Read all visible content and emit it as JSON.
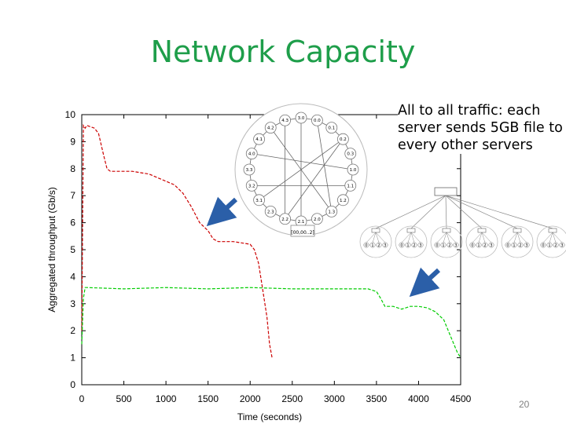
{
  "slide": {
    "title": "Network Capacity",
    "caption": "All to all traffic: each server sends 5GB file to every other servers",
    "page_number": "20"
  },
  "colors": {
    "title": "#1e9e4a",
    "series1": "#cc0000",
    "series2": "#00cc00",
    "arrow": "#2b5fa8"
  },
  "diagrams": {
    "ring": {
      "nodes": [
        "3.0",
        "0.0",
        "0.1",
        "0.2",
        "0.3",
        "1.0",
        "1.1",
        "1.2",
        "1.3",
        "2.0",
        "2.1",
        "2.2",
        "2.3",
        "3.1",
        "3.2",
        "3.3",
        "4.0",
        "4.1",
        "4.2",
        "4.3"
      ],
      "bottom_label": "[00,00..2]"
    },
    "tree": {
      "leaf_labels": [
        "0",
        "1",
        "2",
        "3"
      ],
      "group_count": 6
    }
  },
  "chart_data": {
    "type": "line",
    "title": "",
    "xlabel": "Time (seconds)",
    "ylabel": "Aggregated throughput (Gb/s)",
    "xlim": [
      0,
      4500
    ],
    "ylim": [
      0,
      10
    ],
    "xticks": [
      0,
      500,
      1000,
      1500,
      2000,
      2500,
      3000,
      3500,
      4000,
      4500
    ],
    "yticks": [
      0,
      1,
      2,
      3,
      4,
      5,
      6,
      7,
      8,
      9,
      10
    ],
    "grid": false,
    "series": [
      {
        "color": "#cc0000",
        "style": "dashed",
        "x": [
          0,
          20,
          40,
          60,
          150,
          200,
          260,
          300,
          340,
          380,
          600,
          800,
          950,
          1100,
          1200,
          1300,
          1400,
          1500,
          1560,
          1620,
          1800,
          2000,
          2050,
          2100,
          2150,
          2200,
          2230,
          2260
        ],
        "y": [
          2.0,
          9.6,
          9.5,
          9.6,
          9.5,
          9.3,
          8.5,
          8.0,
          7.9,
          7.9,
          7.9,
          7.8,
          7.6,
          7.4,
          7.1,
          6.6,
          6.0,
          5.7,
          5.4,
          5.3,
          5.3,
          5.2,
          5.0,
          4.5,
          3.5,
          2.5,
          1.5,
          1.0
        ]
      },
      {
        "color": "#00cc00",
        "style": "dashed",
        "x": [
          0,
          20,
          40,
          60,
          500,
          1000,
          1500,
          2000,
          2500,
          3000,
          3400,
          3500,
          3550,
          3600,
          3700,
          3800,
          3900,
          4000,
          4100,
          4200,
          4300,
          4380,
          4420,
          4460,
          4500
        ],
        "y": [
          1.5,
          3.2,
          3.6,
          3.6,
          3.55,
          3.6,
          3.55,
          3.6,
          3.55,
          3.55,
          3.55,
          3.45,
          3.2,
          2.9,
          2.9,
          2.8,
          2.9,
          2.9,
          2.85,
          2.7,
          2.4,
          1.8,
          1.5,
          1.2,
          1.0
        ]
      }
    ]
  }
}
